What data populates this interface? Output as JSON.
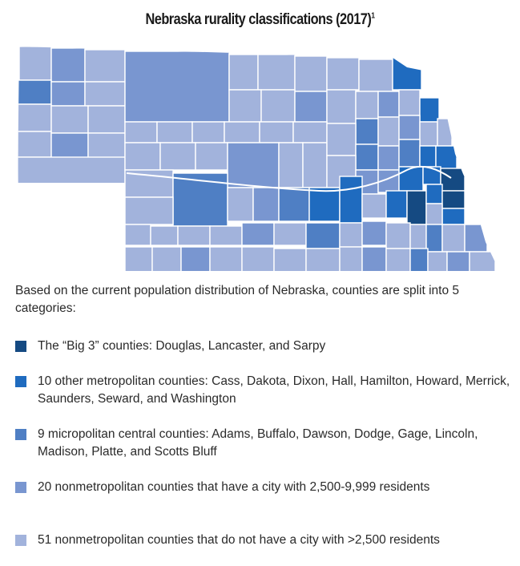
{
  "title": "Nebraska rurality classifications (2017)",
  "title_footnote": "1",
  "intro": "Based on the current population distribution of Nebraska, counties are split into 5 categories:",
  "colors": {
    "big3": "#154a82",
    "metro": "#1f6bbf",
    "micro": "#4f7fc4",
    "nonmetro_city": "#7996d0",
    "nonmetro_rural": "#a2b3dc",
    "border": "#ffffff"
  },
  "legend": [
    {
      "key": "big3",
      "label": "The “Big 3” counties: Douglas, Lancaster, and Sarpy"
    },
    {
      "key": "metro",
      "label": "10 other metropolitan counties: Cass, Dakota, Dixon, Hall, Hamilton, Howard, Merrick, Saunders, Seward, and Washington"
    },
    {
      "key": "micro",
      "label": "9 micropolitan central counties: Adams, Buffalo, Dawson, Dodge, Gage, Lincoln, Madison, Platte, and Scotts Bluff"
    },
    {
      "key": "nonmetro_city",
      "label": "20 nonmetropolitan counties that have a city with 2,500-9,999 residents"
    },
    {
      "key": "nonmetro_rural",
      "label": "51 nonmetropolitan counties that do not have a city with >2,500 residents"
    }
  ]
}
